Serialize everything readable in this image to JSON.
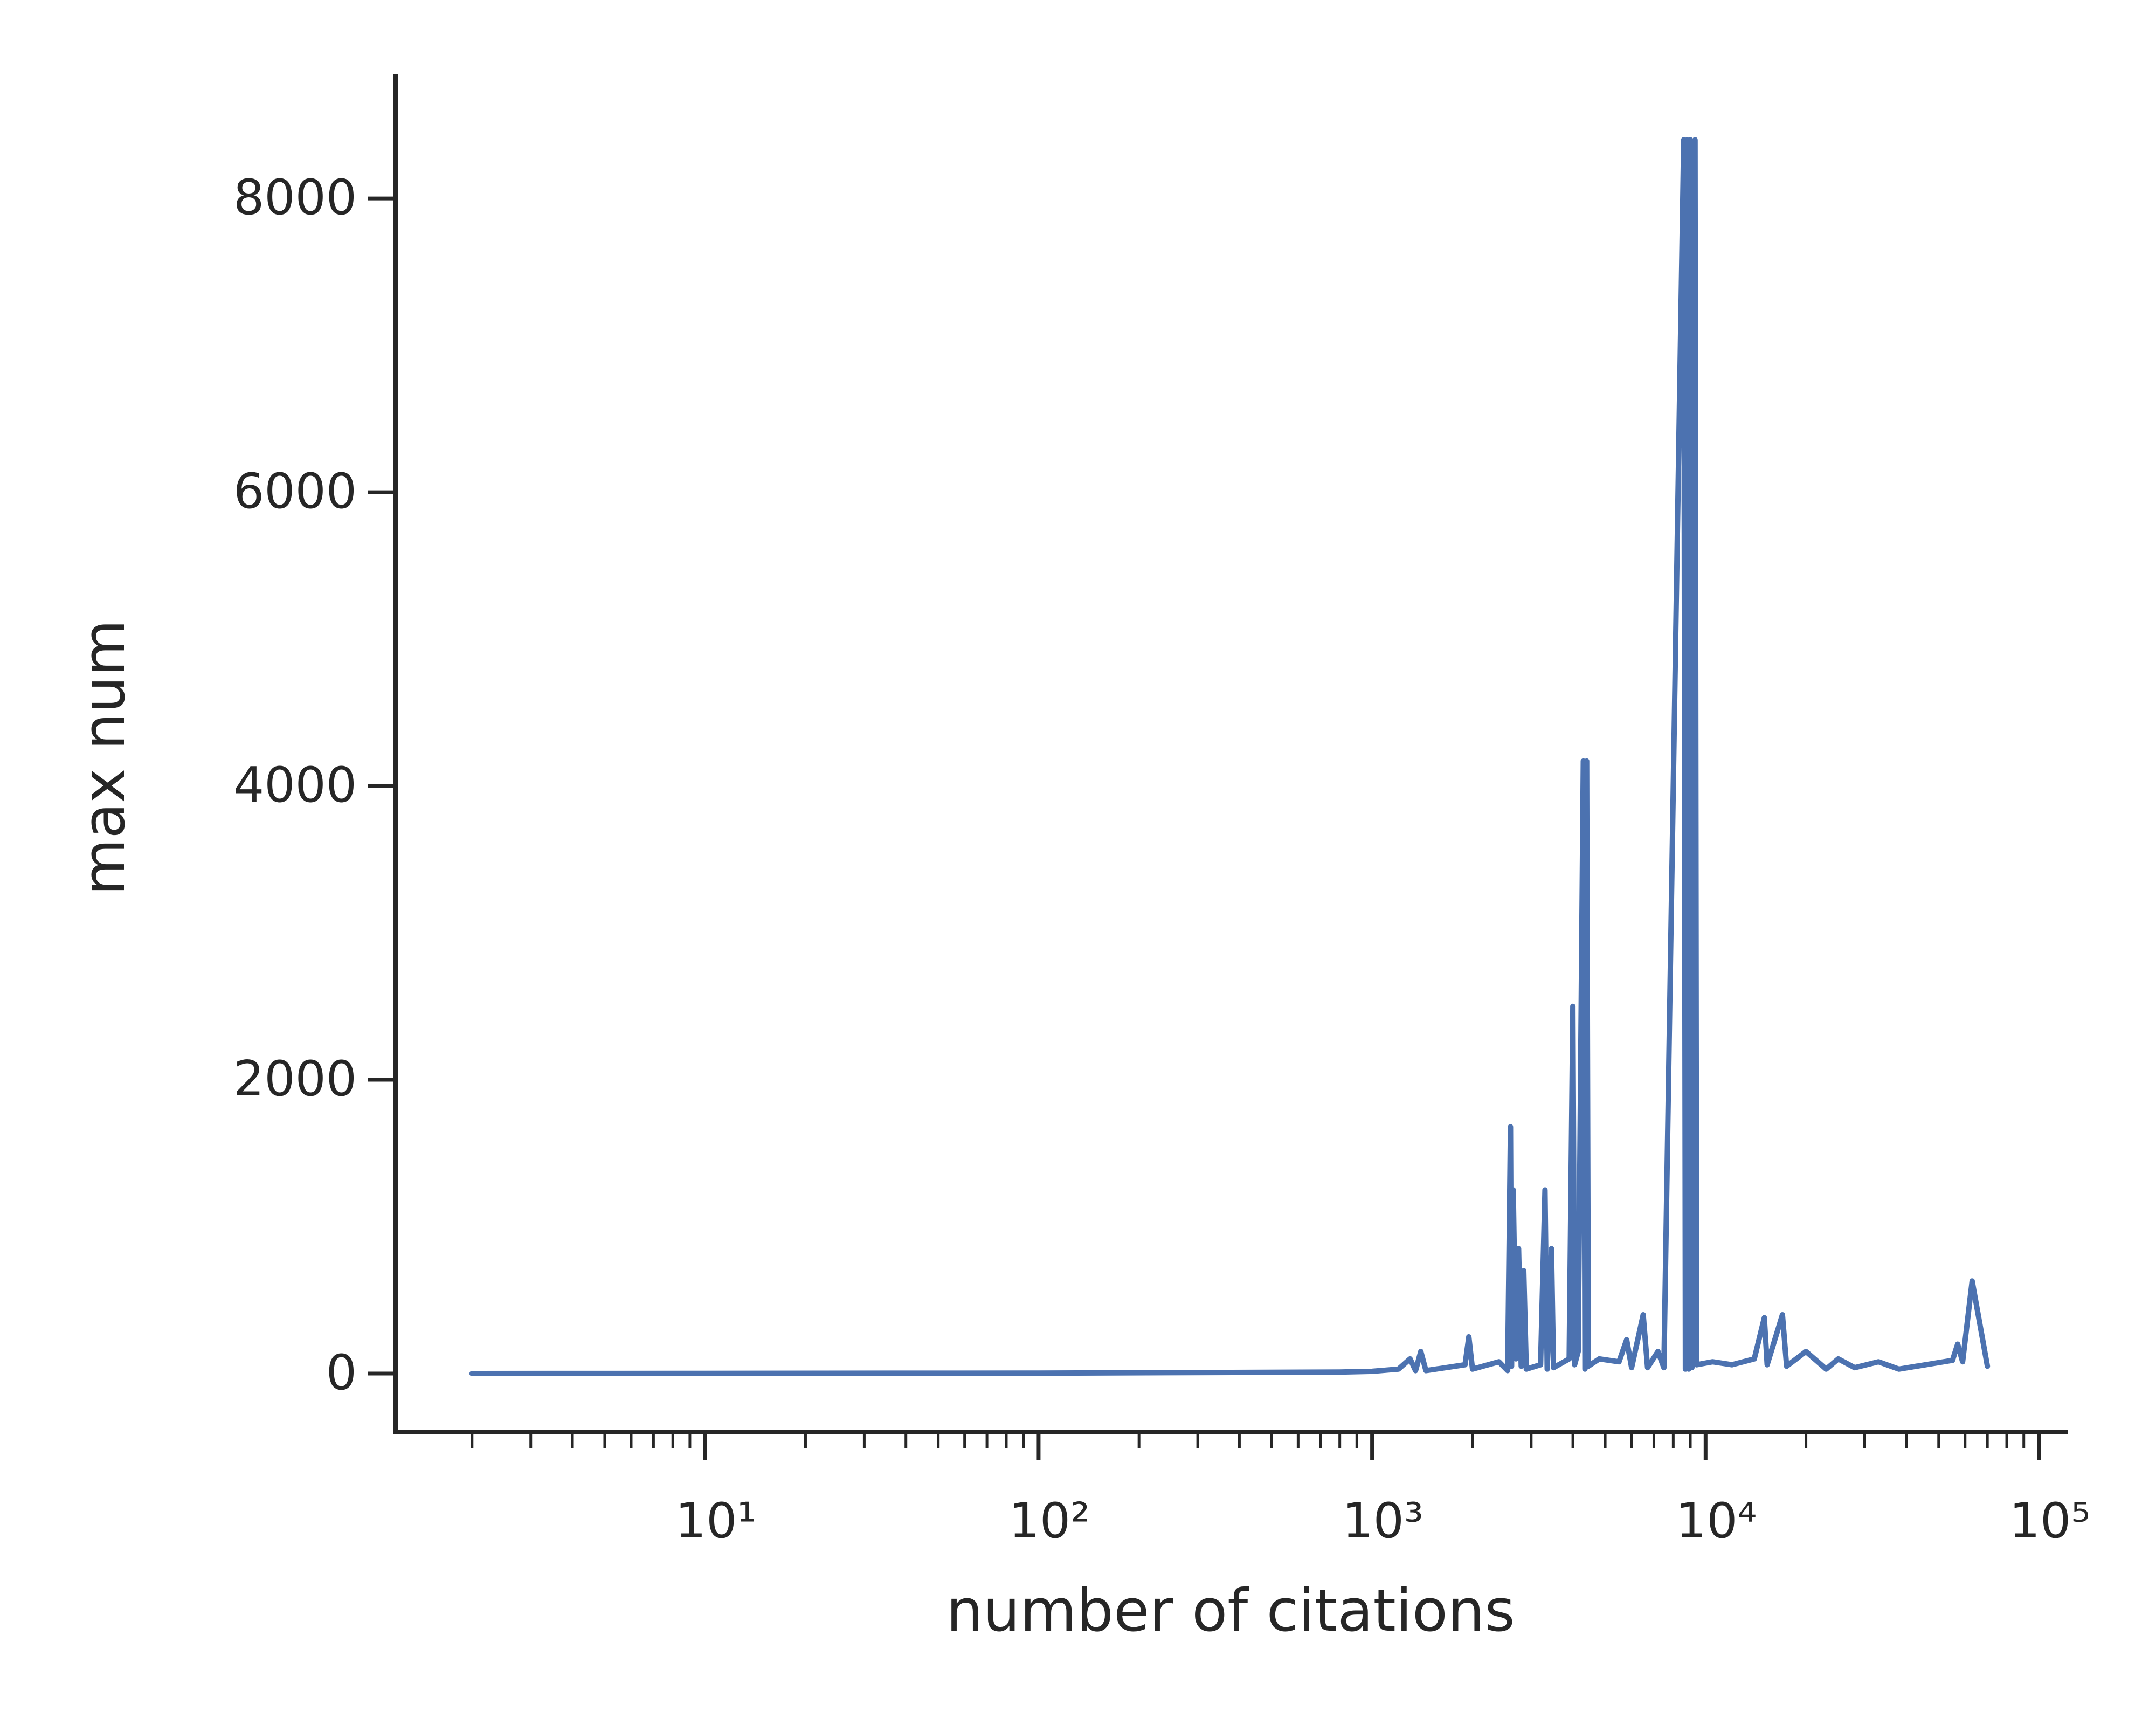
{
  "chart_data": {
    "type": "line",
    "x_label": "number of citations",
    "y_label": "max num",
    "xscale": "log",
    "xlim": [
      1.18,
      120000
    ],
    "ylim": [
      -400,
      8830
    ],
    "xticks": [
      {
        "value": 10,
        "label": "10¹"
      },
      {
        "value": 100,
        "label": "10²"
      },
      {
        "value": 1000,
        "label": "10³"
      },
      {
        "value": 10000,
        "label": "10⁴"
      },
      {
        "value": 100000,
        "label": "10⁵"
      }
    ],
    "xminorticks": [
      2,
      3,
      4,
      5,
      6,
      7,
      8,
      9,
      20,
      30,
      40,
      50,
      60,
      70,
      80,
      90,
      200,
      300,
      400,
      500,
      600,
      700,
      800,
      900,
      2000,
      3000,
      4000,
      5000,
      6000,
      7000,
      8000,
      9000,
      20000,
      30000,
      40000,
      50000,
      60000,
      70000,
      80000,
      90000
    ],
    "yticks": [
      0,
      2000,
      4000,
      6000,
      8000
    ],
    "x": [
      2,
      10,
      100,
      800,
      1000,
      1200,
      1300,
      1350,
      1400,
      1450,
      1900,
      1950,
      2000,
      2400,
      2550,
      2600,
      2620,
      2650,
      2700,
      2750,
      2800,
      2850,
      2900,
      3200,
      3300,
      3350,
      3450,
      3500,
      3900,
      4000,
      4050,
      4150,
      4300,
      4350,
      4400,
      4450,
      4800,
      5500,
      5800,
      6000,
      6500,
      6700,
      7200,
      7500,
      8600,
      8700,
      8800,
      8900,
      9000,
      9100,
      9300,
      9400,
      10500,
      12000,
      14000,
      15000,
      15300,
      17000,
      17500,
      20000,
      23000,
      25000,
      28000,
      33000,
      38000,
      55000,
      57000,
      59000,
      63000,
      70000
    ],
    "series": [
      {
        "color": "#4c72b0",
        "values": [
          0,
          1,
          3,
          10,
          15,
          30,
          100,
          20,
          150,
          20,
          60,
          250,
          30,
          80,
          20,
          1680,
          50,
          1250,
          100,
          850,
          50,
          700,
          30,
          60,
          1250,
          30,
          850,
          40,
          100,
          2500,
          60,
          150,
          4170,
          30,
          4170,
          50,
          100,
          80,
          230,
          40,
          400,
          40,
          150,
          40,
          8400,
          30,
          8400,
          30,
          8400,
          40,
          8400,
          60,
          80,
          60,
          100,
          380,
          60,
          400,
          50,
          150,
          30,
          100,
          40,
          80,
          30,
          90,
          200,
          80,
          630,
          50
        ]
      }
    ]
  }
}
